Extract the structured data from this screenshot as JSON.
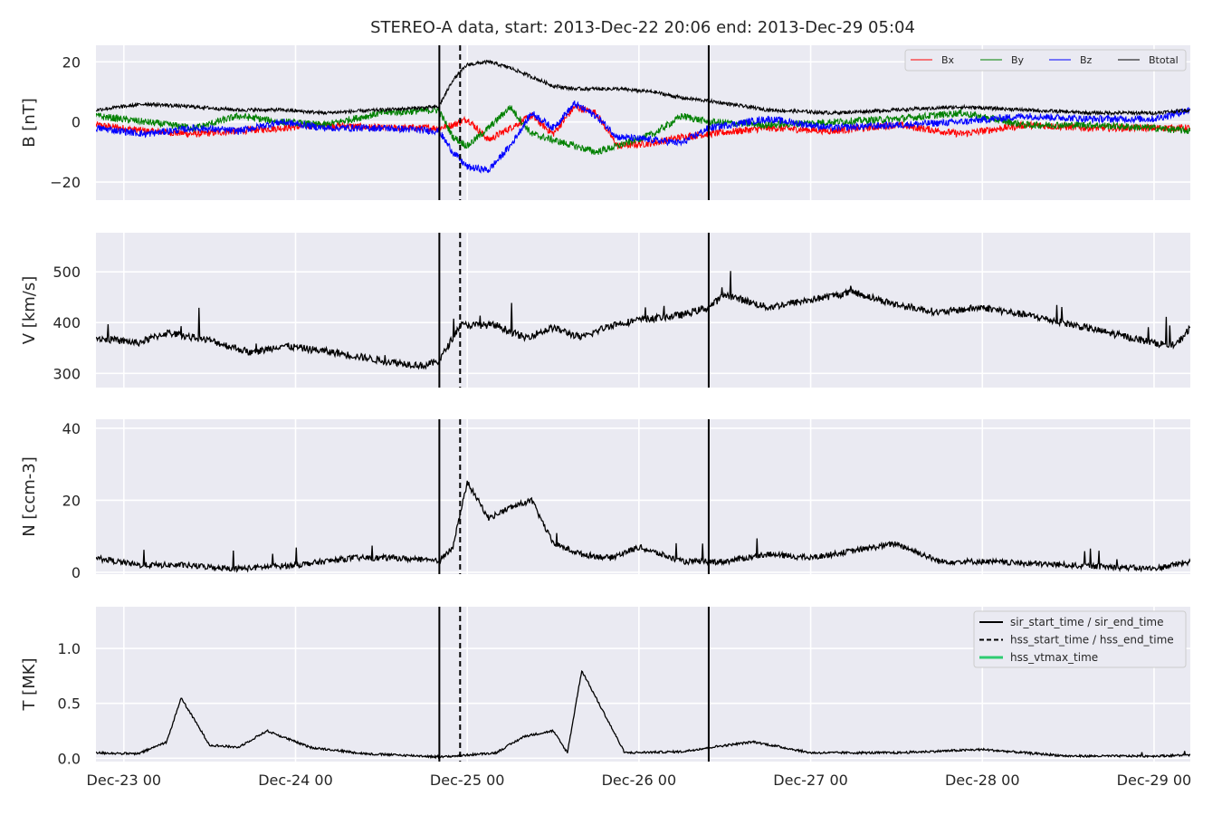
{
  "chart_data": {
    "type": "line",
    "title": "STEREO-A data, start: 2013-Dec-22 20:06  end: 2013-Dec-29 05:04",
    "x_start": "2013-12-22T20:06",
    "x_end": "2013-12-29T05:04",
    "xtick_labels": [
      "Dec-23 00",
      "Dec-24 00",
      "Dec-25 00",
      "Dec-26 00",
      "Dec-27 00",
      "Dec-28 00",
      "Dec-29 00"
    ],
    "xtick_times": [
      "2013-12-23T00:00",
      "2013-12-24T00:00",
      "2013-12-25T00:00",
      "2013-12-26T00:00",
      "2013-12-27T00:00",
      "2013-12-28T00:00",
      "2013-12-29T00:00"
    ],
    "vertical_lines": [
      {
        "label": "sir_start_time / sir_end_time",
        "style": "solid",
        "color": "#000000",
        "times": [
          "2013-12-24T20:06",
          "2013-12-26T09:45"
        ]
      },
      {
        "label": "hss_start_time / hss_end_time",
        "style": "dashed",
        "color": "#000000",
        "times": [
          "2013-12-24T23:00"
        ]
      },
      {
        "label": "hss_vtmax_time",
        "style": "solid",
        "color": "#2ecc71",
        "times": []
      }
    ],
    "panels": [
      {
        "ylabel": "B [nT]",
        "ylim": [
          -26,
          25.5
        ],
        "yticks": [
          20,
          0,
          -20
        ],
        "ytick_labels": [
          "20",
          "0",
          "−20"
        ],
        "legend": "top-right",
        "series": [
          {
            "name": "Bx",
            "color": "#ff0000",
            "x": [
              "2013-12-22T20:06",
              "2013-12-23T03:00",
              "2013-12-23T10:00",
              "2013-12-23T16:00",
              "2013-12-23T22:00",
              "2013-12-24T04:00",
              "2013-12-24T12:00",
              "2013-12-24T20:00",
              "2013-12-24T22:00",
              "2013-12-25T00:00",
              "2013-12-25T03:00",
              "2013-12-25T06:00",
              "2013-12-25T09:00",
              "2013-12-25T12:00",
              "2013-12-25T15:00",
              "2013-12-25T18:00",
              "2013-12-25T21:00",
              "2013-12-26T02:00",
              "2013-12-26T06:00",
              "2013-12-26T09:45",
              "2013-12-26T18:00",
              "2013-12-27T03:00",
              "2013-12-27T12:00",
              "2013-12-27T21:00",
              "2013-12-28T06:00",
              "2013-12-28T15:00",
              "2013-12-29T00:00",
              "2013-12-29T05:04"
            ],
            "values": [
              -1,
              -3,
              -4,
              -3,
              -2,
              -1,
              -2,
              -2,
              -1,
              1,
              -6,
              -2,
              2,
              -4,
              5,
              3,
              -8,
              -7,
              -5,
              -4,
              -2,
              -3,
              -1,
              -4,
              -1,
              -2,
              -2,
              -2
            ]
          },
          {
            "name": "By",
            "color": "#008000",
            "x": [
              "2013-12-22T20:06",
              "2013-12-23T03:00",
              "2013-12-23T10:00",
              "2013-12-23T16:00",
              "2013-12-23T22:00",
              "2013-12-24T04:00",
              "2013-12-24T12:00",
              "2013-12-24T20:00",
              "2013-12-24T22:00",
              "2013-12-25T00:00",
              "2013-12-25T03:00",
              "2013-12-25T06:00",
              "2013-12-25T09:00",
              "2013-12-25T12:00",
              "2013-12-25T15:00",
              "2013-12-25T18:00",
              "2013-12-25T21:00",
              "2013-12-26T02:00",
              "2013-12-26T06:00",
              "2013-12-26T09:45",
              "2013-12-26T18:00",
              "2013-12-27T03:00",
              "2013-12-27T12:00",
              "2013-12-27T21:00",
              "2013-12-28T06:00",
              "2013-12-28T15:00",
              "2013-12-29T00:00",
              "2013-12-29T05:04"
            ],
            "values": [
              2,
              0,
              -2,
              2,
              0,
              -1,
              3,
              4,
              -5,
              -8,
              -2,
              5,
              -4,
              -6,
              -8,
              -10,
              -8,
              -4,
              2,
              0,
              -1,
              0,
              1,
              3,
              -1,
              -1,
              -2,
              -3
            ]
          },
          {
            "name": "Bz",
            "color": "#0000ff",
            "x": [
              "2013-12-22T20:06",
              "2013-12-23T03:00",
              "2013-12-23T10:00",
              "2013-12-23T16:00",
              "2013-12-23T22:00",
              "2013-12-24T04:00",
              "2013-12-24T12:00",
              "2013-12-24T20:00",
              "2013-12-24T22:00",
              "2013-12-25T00:00",
              "2013-12-25T03:00",
              "2013-12-25T06:00",
              "2013-12-25T09:00",
              "2013-12-25T12:00",
              "2013-12-25T15:00",
              "2013-12-25T18:00",
              "2013-12-25T21:00",
              "2013-12-26T02:00",
              "2013-12-26T06:00",
              "2013-12-26T09:45",
              "2013-12-26T18:00",
              "2013-12-27T03:00",
              "2013-12-27T12:00",
              "2013-12-27T21:00",
              "2013-12-28T06:00",
              "2013-12-28T15:00",
              "2013-12-29T00:00",
              "2013-12-29T05:04"
            ],
            "values": [
              -2,
              -4,
              -2,
              -3,
              0,
              -2,
              -2,
              -3,
              -10,
              -15,
              -16,
              -8,
              3,
              -2,
              6,
              2,
              -5,
              -6,
              -7,
              -2,
              1,
              -2,
              -1,
              0,
              2,
              1,
              1,
              4
            ]
          },
          {
            "name": "Btotal",
            "color": "#000000",
            "x": [
              "2013-12-22T20:06",
              "2013-12-23T03:00",
              "2013-12-23T10:00",
              "2013-12-23T16:00",
              "2013-12-23T22:00",
              "2013-12-24T04:00",
              "2013-12-24T12:00",
              "2013-12-24T20:00",
              "2013-12-24T22:00",
              "2013-12-25T00:00",
              "2013-12-25T03:00",
              "2013-12-25T06:00",
              "2013-12-25T09:00",
              "2013-12-25T12:00",
              "2013-12-25T15:00",
              "2013-12-25T18:00",
              "2013-12-25T21:00",
              "2013-12-26T02:00",
              "2013-12-26T06:00",
              "2013-12-26T09:45",
              "2013-12-26T18:00",
              "2013-12-27T03:00",
              "2013-12-27T12:00",
              "2013-12-27T21:00",
              "2013-12-28T06:00",
              "2013-12-28T15:00",
              "2013-12-29T00:00",
              "2013-12-29T05:04"
            ],
            "values": [
              4,
              6,
              5,
              4,
              4,
              3,
              4,
              5,
              14,
              19,
              20,
              18,
              15,
              12,
              11,
              11,
              11,
              10,
              8,
              7,
              4,
              3,
              4,
              5,
              4,
              3,
              3,
              4
            ]
          }
        ]
      },
      {
        "ylabel": "V [km/s]",
        "ylim": [
          272,
          577
        ],
        "yticks": [
          500,
          400,
          300
        ],
        "ytick_labels": [
          "500",
          "400",
          "300"
        ],
        "series": [
          {
            "name": "",
            "color": "#000000",
            "x": [
              "2013-12-22T20:06",
              "2013-12-23T02:00",
              "2013-12-23T06:00",
              "2013-12-23T12:00",
              "2013-12-23T18:00",
              "2013-12-23T22:00",
              "2013-12-24T06:00",
              "2013-12-24T12:00",
              "2013-12-24T18:00",
              "2013-12-24T20:06",
              "2013-12-24T23:00",
              "2013-12-25T04:00",
              "2013-12-25T08:00",
              "2013-12-25T12:00",
              "2013-12-25T16:00",
              "2013-12-25T20:00",
              "2013-12-26T00:00",
              "2013-12-26T06:00",
              "2013-12-26T09:45",
              "2013-12-26T12:00",
              "2013-12-26T18:00",
              "2013-12-27T00:00",
              "2013-12-27T06:00",
              "2013-12-27T12:00",
              "2013-12-27T18:00",
              "2013-12-28T00:00",
              "2013-12-28T08:00",
              "2013-12-28T16:00",
              "2013-12-29T00:00",
              "2013-12-29T03:00",
              "2013-12-29T05:04"
            ],
            "values": [
              370,
              360,
              380,
              365,
              340,
              355,
              340,
              325,
              315,
              325,
              395,
              395,
              370,
              390,
              370,
              395,
              405,
              415,
              430,
              455,
              430,
              445,
              460,
              435,
              420,
              430,
              410,
              385,
              360,
              355,
              390
            ]
          }
        ]
      },
      {
        "ylabel": "N [ccm-3]",
        "ylim": [
          -0.5,
          42.5
        ],
        "yticks": [
          40,
          20,
          0
        ],
        "ytick_labels": [
          "40",
          "20",
          "0"
        ],
        "series": [
          {
            "name": "",
            "color": "#000000",
            "x": [
              "2013-12-22T20:06",
              "2013-12-23T02:00",
              "2013-12-23T08:00",
              "2013-12-23T16:00",
              "2013-12-24T00:00",
              "2013-12-24T08:00",
              "2013-12-24T14:00",
              "2013-12-24T20:06",
              "2013-12-24T22:00",
              "2013-12-25T00:00",
              "2013-12-25T03:00",
              "2013-12-25T06:00",
              "2013-12-25T09:00",
              "2013-12-25T12:00",
              "2013-12-25T16:00",
              "2013-12-25T20:00",
              "2013-12-26T00:00",
              "2013-12-26T06:00",
              "2013-12-26T12:00",
              "2013-12-26T18:00",
              "2013-12-27T00:00",
              "2013-12-27T06:00",
              "2013-12-27T12:00",
              "2013-12-27T18:00",
              "2013-12-28T00:00",
              "2013-12-28T12:00",
              "2013-12-29T00:00",
              "2013-12-29T05:04"
            ],
            "values": [
              4,
              2,
              2,
              1,
              2,
              4,
              4,
              3,
              7,
              25,
              15,
              18,
              20,
              8,
              5,
              4,
              7,
              3,
              3,
              5,
              4,
              6,
              8,
              3,
              3,
              2,
              1,
              3
            ]
          }
        ]
      },
      {
        "ylabel": "T [MK]",
        "ylim": [
          -0.03,
          1.38
        ],
        "yticks": [
          1.0,
          0.5,
          0.0
        ],
        "ytick_labels": [
          "1.0",
          "0.5",
          "0.0"
        ],
        "legend": "top-right",
        "series": [
          {
            "name": "",
            "color": "#000000",
            "x": [
              "2013-12-22T20:06",
              "2013-12-23T02:00",
              "2013-12-23T06:00",
              "2013-12-23T08:00",
              "2013-12-23T12:00",
              "2013-12-23T16:00",
              "2013-12-23T20:00",
              "2013-12-24T02:00",
              "2013-12-24T10:00",
              "2013-12-24T18:00",
              "2013-12-24T20:06",
              "2013-12-25T00:00",
              "2013-12-25T04:00",
              "2013-12-25T08:00",
              "2013-12-25T12:00",
              "2013-12-25T14:00",
              "2013-12-25T16:00",
              "2013-12-25T22:00",
              "2013-12-26T06:00",
              "2013-12-26T10:00",
              "2013-12-26T16:00",
              "2013-12-27T00:00",
              "2013-12-27T12:00",
              "2013-12-28T00:00",
              "2013-12-28T12:00",
              "2013-12-29T00:00",
              "2013-12-29T05:04"
            ],
            "values": [
              0.05,
              0.04,
              0.15,
              0.55,
              0.12,
              0.1,
              0.25,
              0.1,
              0.04,
              0.02,
              0.01,
              0.03,
              0.05,
              0.2,
              0.25,
              0.05,
              0.8,
              0.05,
              0.06,
              0.1,
              0.15,
              0.05,
              0.05,
              0.08,
              0.02,
              0.02,
              0.03
            ]
          }
        ]
      }
    ],
    "legend_B": [
      "Bx",
      "By",
      "Bz",
      "Btotal"
    ],
    "legend_T": [
      "sir_start_time / sir_end_time",
      "hss_start_time / hss_end_time",
      "hss_vtmax_time"
    ]
  }
}
